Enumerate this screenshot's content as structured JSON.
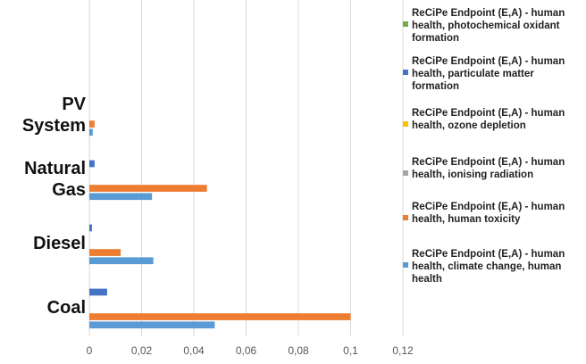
{
  "chart_data": {
    "type": "hbar",
    "categories": [
      "PV System",
      "Natural Gas",
      "Diesel",
      "Coal"
    ],
    "series": [
      {
        "name": "ReCiPe Endpoint (E,A) - human health, photochemical oxidant formation",
        "color": "#70ad47",
        "values": [
          0,
          0,
          0,
          0
        ]
      },
      {
        "name": "ReCiPe Endpoint (E,A) - human health, particulate matter formation",
        "color": "#4472c4",
        "values": [
          0,
          0.002,
          0.001,
          0.0068
        ]
      },
      {
        "name": "ReCiPe Endpoint (E,A) - human health, ozone depletion",
        "color": "#ffc000",
        "values": [
          0,
          0,
          0,
          0
        ]
      },
      {
        "name": "ReCiPe Endpoint (E,A) - human health, ionising radiation",
        "color": "#a5a5a5",
        "values": [
          0,
          0,
          0,
          0
        ]
      },
      {
        "name": "ReCiPe Endpoint (E,A) - human health, human toxicity",
        "color": "#ed7d31",
        "values": [
          0.002,
          0.045,
          0.012,
          0.1
        ]
      },
      {
        "name": "ReCiPe Endpoint (E,A) - human health, climate change, human health",
        "color": "#5b9bd5",
        "values": [
          0.0013,
          0.024,
          0.0245,
          0.048
        ]
      }
    ],
    "xlim": [
      0,
      0.12
    ],
    "xticks": [
      0,
      {
        "value": 0.02,
        "label": "0,02"
      },
      {
        "value": 0.04,
        "label": "0,04"
      },
      {
        "value": 0.06,
        "label": "0,06"
      },
      {
        "value": 0.08,
        "label": "0,08"
      },
      {
        "value": 0.1,
        "label": "0,1"
      },
      {
        "value": 0.12,
        "label": "0,12"
      }
    ],
    "grid": true
  }
}
